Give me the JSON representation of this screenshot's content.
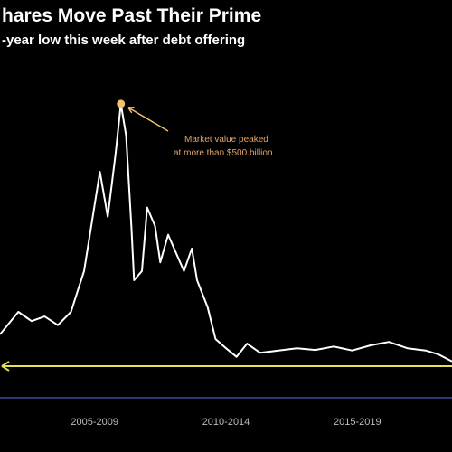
{
  "chart_data": {
    "type": "line",
    "title": "hares Move Past Their Prime",
    "subtitle": "-year low this week after debt offering",
    "annotation": [
      "Market value peaked",
      "at more than $500 billion"
    ],
    "x": [
      2003.9,
      2004.6,
      2005.1,
      2005.6,
      2006.1,
      2006.6,
      2007.1,
      2007.7,
      2008.0,
      2008.3,
      2008.5,
      2008.7,
      2008.9,
      2009.0,
      2009.3,
      2009.5,
      2009.8,
      2010.0,
      2010.3,
      2010.6,
      2010.9,
      2011.2,
      2011.4,
      2011.8,
      2012.1,
      2012.5,
      2012.9,
      2013.3,
      2013.8,
      2014.5,
      2015.2,
      2015.9,
      2016.6,
      2017.3,
      2018.0,
      2018.7,
      2019.4,
      2020.1,
      2020.6,
      2021.1
    ],
    "series": [
      {
        "color": "#ffffff",
        "values": [
          110,
          149,
          133,
          141,
          126,
          149,
          220,
          392,
          314,
          424,
          510,
          455,
          298,
          204,
          220,
          330,
          298,
          235,
          283,
          251,
          220,
          259,
          204,
          157,
          102,
          86,
          71,
          94,
          78,
          82,
          86,
          83,
          89,
          82,
          91,
          97,
          86,
          82,
          75,
          63
        ]
      }
    ],
    "peak_index": 10,
    "peak_color": "#f0c070",
    "reference_line": {
      "value": 55,
      "color": "#e6e05a"
    },
    "xlim": [
      2003.9,
      2021.1
    ],
    "ylim": [
      0,
      560
    ],
    "xticks": [
      {
        "value": 2007.5,
        "label": "2005-2009"
      },
      {
        "value": 2012.5,
        "label": "2010-2014"
      },
      {
        "value": 2017.5,
        "label": "2015-2019"
      }
    ]
  }
}
